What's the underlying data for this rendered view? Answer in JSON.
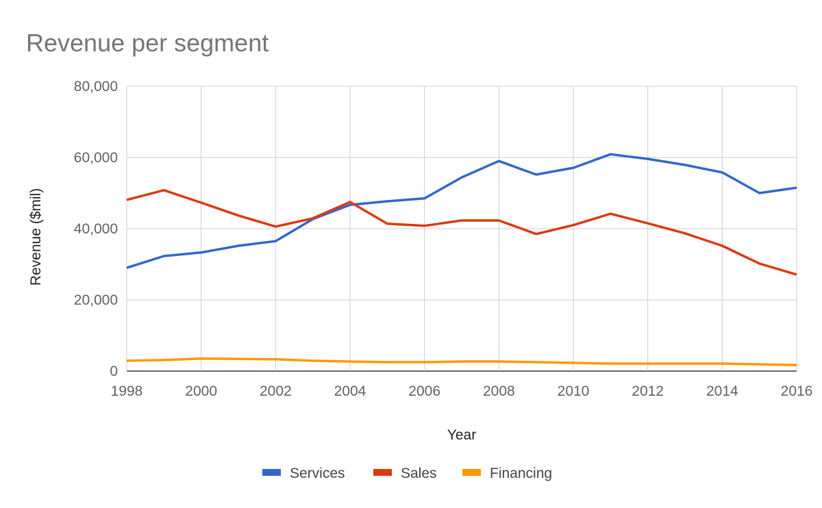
{
  "chart_data": {
    "type": "line",
    "title": "Revenue per segment",
    "xlabel": "Year",
    "ylabel": "Revenue ($mil)",
    "ylim": [
      0,
      80000
    ],
    "xlim": [
      1998,
      2016
    ],
    "yticks": [
      "0",
      "20,000",
      "40,000",
      "60,000",
      "80,000"
    ],
    "ytick_values": [
      0,
      20000,
      40000,
      60000,
      80000
    ],
    "xticks": [
      "1998",
      "2000",
      "2002",
      "2004",
      "2006",
      "2008",
      "2010",
      "2012",
      "2014",
      "2016"
    ],
    "xtick_values": [
      1998,
      2000,
      2002,
      2004,
      2006,
      2008,
      2010,
      2012,
      2014,
      2016
    ],
    "grid": true,
    "legend_position": "bottom",
    "x": [
      1998,
      1999,
      2000,
      2001,
      2002,
      2003,
      2004,
      2005,
      2006,
      2007,
      2008,
      2009,
      2010,
      2011,
      2012,
      2013,
      2014,
      2015,
      2016
    ],
    "series": [
      {
        "name": "Services",
        "color": "#3366cc",
        "values": [
          29000,
          32300,
          33300,
          35200,
          36500,
          42700,
          46700,
          47700,
          48500,
          54400,
          59000,
          55200,
          57100,
          60900,
          59600,
          57900,
          55800,
          50000,
          51500
        ]
      },
      {
        "name": "Sales",
        "color": "#dc3912",
        "values": [
          48100,
          50800,
          47300,
          43700,
          40600,
          42900,
          47500,
          41400,
          40800,
          42300,
          42300,
          38500,
          41000,
          44200,
          41500,
          38700,
          35200,
          30200,
          27100
        ]
      },
      {
        "name": "Financing",
        "color": "#ff9900",
        "values": [
          2900,
          3100,
          3500,
          3400,
          3300,
          2900,
          2700,
          2500,
          2500,
          2700,
          2700,
          2500,
          2300,
          2100,
          2100,
          2100,
          2100,
          1900,
          1700
        ]
      }
    ]
  }
}
